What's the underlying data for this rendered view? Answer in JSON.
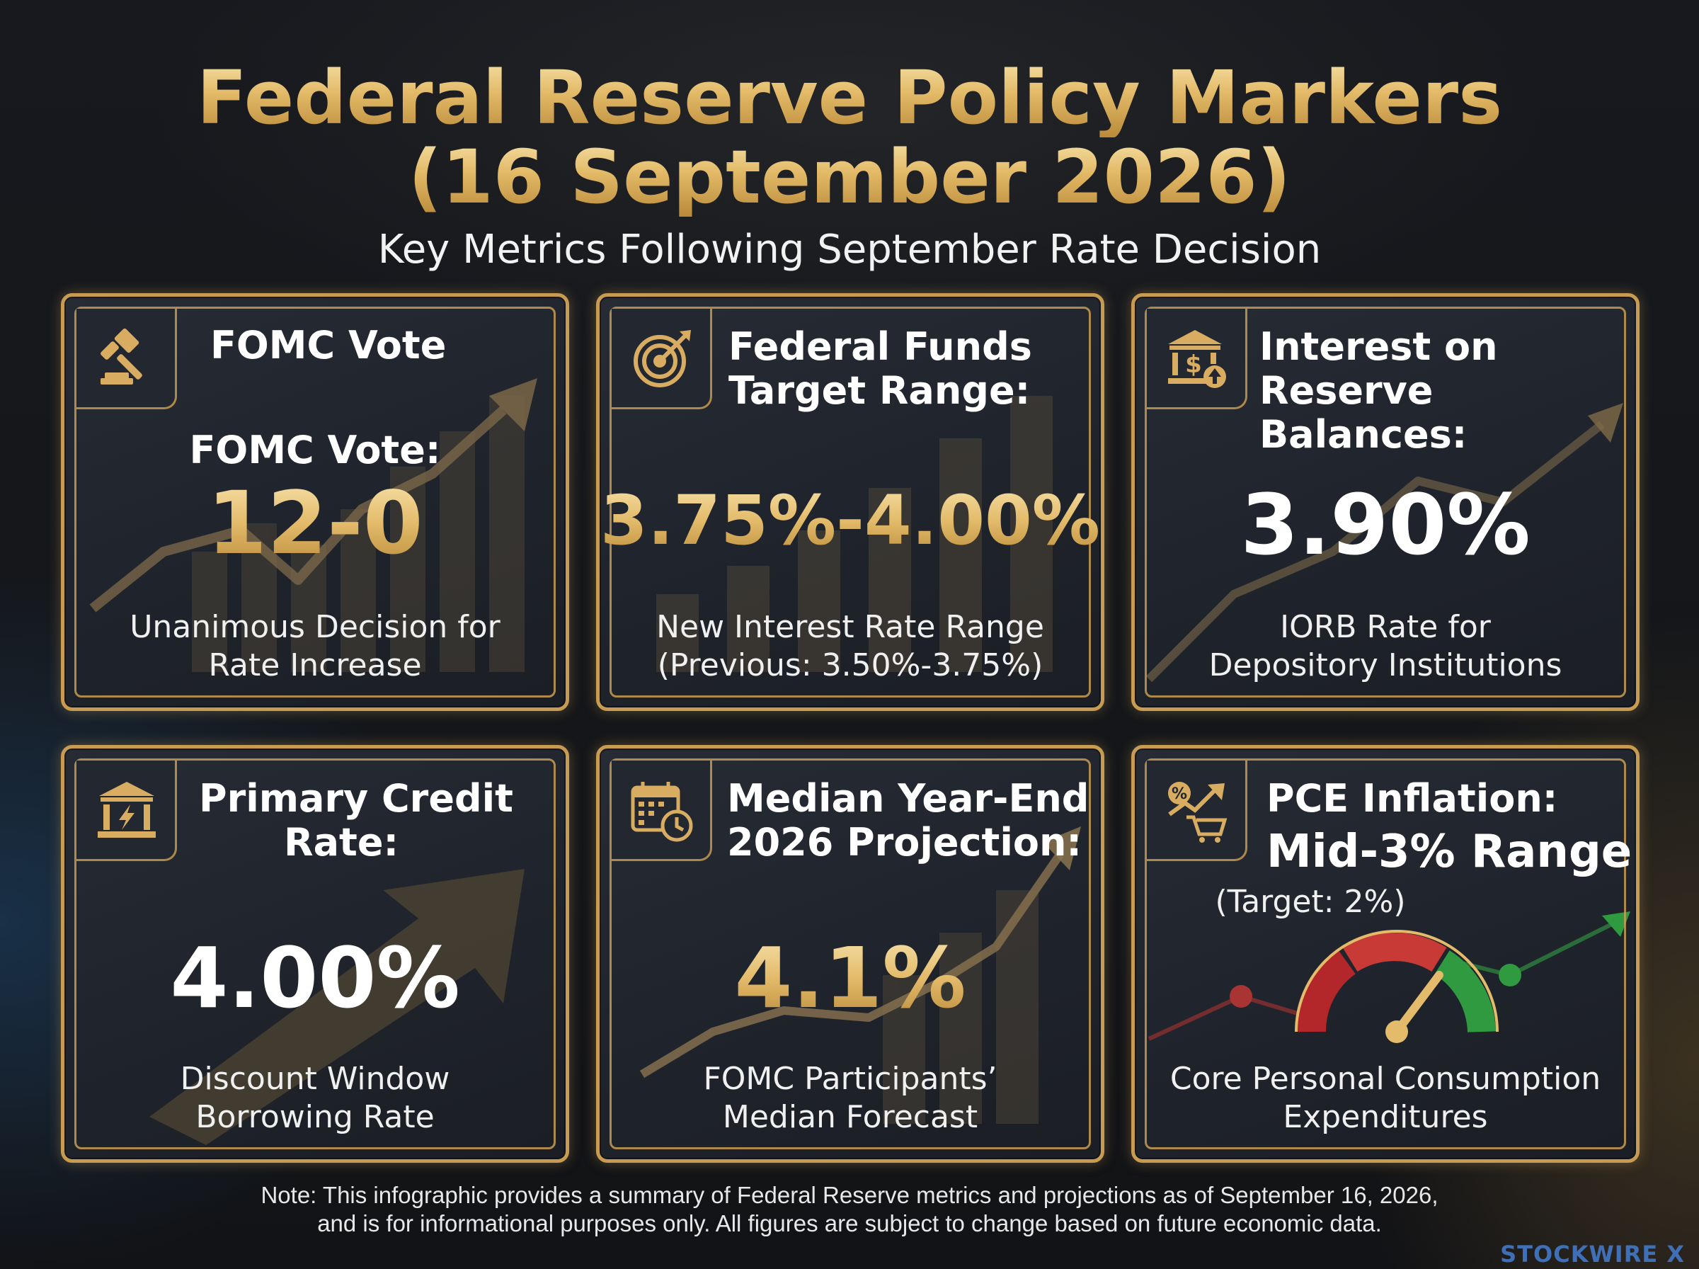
{
  "header": {
    "title_line1": "Federal Reserve Policy Markers",
    "title_line2": "(16 September 2026)",
    "subtitle": "Key Metrics Following September Rate Decision"
  },
  "cards": [
    {
      "icon": "gavel-icon",
      "heading": [
        "FOMC Vote"
      ],
      "value_label": "FOMC Vote:",
      "value": "12-0",
      "description": [
        "Unanimous Decision for",
        "Rate Increase"
      ]
    },
    {
      "icon": "target-icon",
      "heading": [
        "Federal Funds",
        "Target Range:"
      ],
      "value": "3.75%-4.00%",
      "description": [
        "New Interest Rate Range",
        "(Previous: 3.50%-3.75%)"
      ]
    },
    {
      "icon": "bank-dollar-icon",
      "heading": [
        "Interest on",
        "Reserve Balances:"
      ],
      "value": "3.90%",
      "description": [
        "IORB Rate for",
        "Depository Institutions"
      ]
    },
    {
      "icon": "bank-lightning-icon",
      "heading": [
        "Primary Credit",
        "Rate:"
      ],
      "value": "4.00%",
      "description": [
        "Discount Window",
        "Borrowing Rate"
      ]
    },
    {
      "icon": "calendar-clock-icon",
      "heading": [
        "Median Year-End",
        "2026 Projection:"
      ],
      "value": "4.1%",
      "description": [
        "FOMC Participants’",
        "Median Forecast"
      ]
    },
    {
      "icon": "cart-percent-icon",
      "heading": [
        "PCE Inflation:"
      ],
      "value": "Mid-3% Range",
      "value_note": "(Target: 2%)",
      "description": [
        "Core Personal Consumption",
        "Expenditures"
      ]
    }
  ],
  "footer": {
    "note_line1": "Note: This infographic provides a summary of Federal Reserve metrics and projections as of September 16, 2026,",
    "note_line2": "and is for informational purposes only. All figures are subject to change based on future economic data.",
    "brand": "STOCKWIRE X"
  },
  "colors": {
    "gold": "#c79c52",
    "card_bg": "#22262e",
    "gauge_red": "#c0292b",
    "gauge_green": "#2f9a3f"
  }
}
